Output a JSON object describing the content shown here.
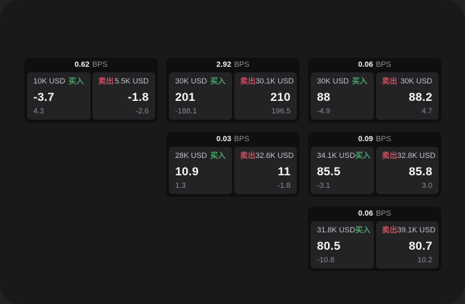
{
  "colors": {
    "buy_green": "#46a665",
    "sell_red": "#c8505e",
    "window_bg": "#19191b",
    "backdrop_bg": "#222224",
    "card_bg": "#0f0f10",
    "panel_bg": "#232326"
  },
  "labels": {
    "bps_unit": "BPS",
    "buy": "买入",
    "sell": "卖出"
  },
  "cards": [
    {
      "row": 1,
      "col": 1,
      "bps_value": "0.62",
      "bps_unit": "BPS",
      "buy": {
        "amount": "10K USD",
        "side_label": "买入",
        "price": "-3.7",
        "delta": "4.3"
      },
      "sell": {
        "amount": "5.5K USD",
        "side_label": "卖出",
        "price": "-1.8",
        "delta": "-2.6"
      }
    },
    {
      "row": 1,
      "col": 2,
      "bps_value": "2.92",
      "bps_unit": "BPS",
      "buy": {
        "amount": "30K USD",
        "side_label": "买入",
        "price": "201",
        "delta": "-188.1"
      },
      "sell": {
        "amount": "30.1K USD",
        "side_label": "卖出",
        "price": "210",
        "delta": "196.5"
      }
    },
    {
      "row": 1,
      "col": 3,
      "bps_value": "0.06",
      "bps_unit": "BPS",
      "buy": {
        "amount": "30K USD",
        "side_label": "买入",
        "price": "88",
        "delta": "-4.9"
      },
      "sell": {
        "amount": "30K USD",
        "side_label": "卖出",
        "price": "88.2",
        "delta": "4.7"
      }
    },
    {
      "row": 2,
      "col": 2,
      "bps_value": "0.03",
      "bps_unit": "BPS",
      "buy": {
        "amount": "28K USD",
        "side_label": "买入",
        "price": "10.9",
        "delta": "1.3"
      },
      "sell": {
        "amount": "32.6K USD",
        "side_label": "卖出",
        "price": "11",
        "delta": "-1.8"
      }
    },
    {
      "row": 2,
      "col": 3,
      "bps_value": "0.09",
      "bps_unit": "BPS",
      "buy": {
        "amount": "34.1K USD",
        "side_label": "买入",
        "price": "85.5",
        "delta": "-3.1"
      },
      "sell": {
        "amount": "32.8K USD",
        "side_label": "卖出",
        "price": "85.8",
        "delta": "3.0"
      }
    },
    {
      "row": 3,
      "col": 3,
      "bps_value": "0.06",
      "bps_unit": "BPS",
      "buy": {
        "amount": "31.8K USD",
        "side_label": "买入",
        "price": "80.5",
        "delta": "-10.8"
      },
      "sell": {
        "amount": "39.1K USD",
        "side_label": "卖出",
        "price": "80.7",
        "delta": "10.2"
      }
    }
  ]
}
